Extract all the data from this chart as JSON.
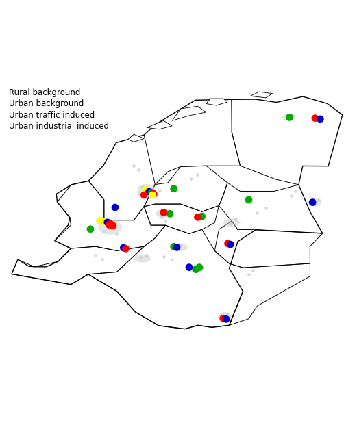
{
  "legend_labels": [
    "Rural background",
    "Urban background",
    "Urban traffic induced",
    "Urban industrial induced"
  ],
  "legend_colors": [
    "#FFFF00",
    "#0000CC",
    "#FF0000",
    "#00AA00"
  ],
  "dot_size": 60,
  "background_color": "#FFFFFF",
  "sampling_locations": [
    {
      "lon": 6.58,
      "lat": 53.22,
      "type": "green"
    },
    {
      "lon": 6.88,
      "lat": 53.21,
      "type": "red"
    },
    {
      "lon": 6.94,
      "lat": 53.2,
      "type": "blue"
    },
    {
      "lon": 5.22,
      "lat": 52.38,
      "type": "green"
    },
    {
      "lon": 4.89,
      "lat": 52.37,
      "type": "yellow"
    },
    {
      "lon": 4.93,
      "lat": 52.345,
      "type": "blue"
    },
    {
      "lon": 4.96,
      "lat": 52.335,
      "type": "green"
    },
    {
      "lon": 4.975,
      "lat": 52.325,
      "type": "red"
    },
    {
      "lon": 4.985,
      "lat": 52.315,
      "type": "red"
    },
    {
      "lon": 4.97,
      "lat": 52.305,
      "type": "yellow"
    },
    {
      "lon": 4.53,
      "lat": 52.16,
      "type": "blue"
    },
    {
      "lon": 4.35,
      "lat": 52.005,
      "type": "yellow"
    },
    {
      "lon": 4.385,
      "lat": 51.995,
      "type": "yellow"
    },
    {
      "lon": 4.44,
      "lat": 51.985,
      "type": "blue"
    },
    {
      "lon": 4.455,
      "lat": 51.975,
      "type": "blue"
    },
    {
      "lon": 4.475,
      "lat": 51.965,
      "type": "red"
    },
    {
      "lon": 4.49,
      "lat": 51.955,
      "type": "red"
    },
    {
      "lon": 4.46,
      "lat": 51.955,
      "type": "red"
    },
    {
      "lon": 4.505,
      "lat": 51.945,
      "type": "red"
    },
    {
      "lon": 4.24,
      "lat": 51.905,
      "type": "green"
    },
    {
      "lon": 4.87,
      "lat": 52.305,
      "type": "red"
    },
    {
      "lon": 5.1,
      "lat": 52.1,
      "type": "red"
    },
    {
      "lon": 5.175,
      "lat": 52.085,
      "type": "green"
    },
    {
      "lon": 5.55,
      "lat": 52.055,
      "type": "green"
    },
    {
      "lon": 5.5,
      "lat": 52.045,
      "type": "red"
    },
    {
      "lon": 6.1,
      "lat": 52.25,
      "type": "green"
    },
    {
      "lon": 6.85,
      "lat": 52.22,
      "type": "blue"
    },
    {
      "lon": 4.63,
      "lat": 51.685,
      "type": "blue"
    },
    {
      "lon": 4.655,
      "lat": 51.675,
      "type": "red"
    },
    {
      "lon": 5.22,
      "lat": 51.7,
      "type": "green"
    },
    {
      "lon": 5.255,
      "lat": 51.69,
      "type": "blue"
    },
    {
      "lon": 5.855,
      "lat": 51.735,
      "type": "red"
    },
    {
      "lon": 5.885,
      "lat": 51.725,
      "type": "blue"
    },
    {
      "lon": 5.4,
      "lat": 51.455,
      "type": "blue"
    },
    {
      "lon": 5.52,
      "lat": 51.455,
      "type": "green"
    },
    {
      "lon": 5.48,
      "lat": 51.43,
      "type": "green"
    },
    {
      "lon": 5.8,
      "lat": 50.855,
      "type": "red"
    },
    {
      "lon": 5.835,
      "lat": 50.845,
      "type": "blue"
    }
  ],
  "color_map": {
    "yellow": "#FFFF00",
    "blue": "#0000CC",
    "red": "#FF0000",
    "green": "#00AA00"
  },
  "xlim": [
    3.2,
    7.35
  ],
  "ylim": [
    50.55,
    53.65
  ],
  "figsize": [
    5.21,
    6.21
  ],
  "dpi": 100
}
